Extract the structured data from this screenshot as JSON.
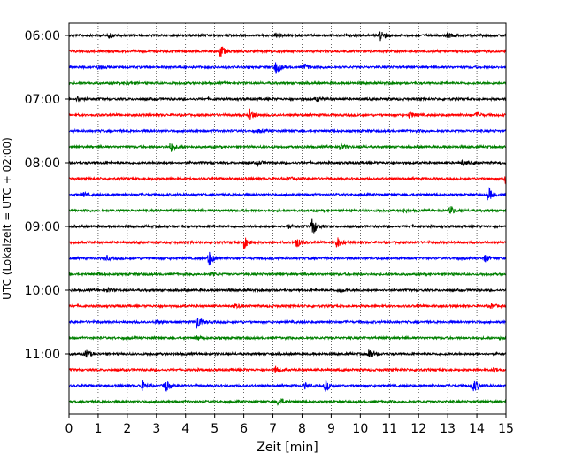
{
  "chart_data": {
    "type": "line",
    "title": "",
    "xlabel": "Zeit  [min]",
    "ylabel": "UTC (Lokalzeit = UTC + 02:00)",
    "xlim": [
      0,
      15
    ],
    "xticks": [
      "0",
      "1",
      "2",
      "3",
      "4",
      "5",
      "6",
      "7",
      "8",
      "9",
      "10",
      "11",
      "12",
      "13",
      "14",
      "15"
    ],
    "grid": "vertical-dotted",
    "trace_colors": [
      "#000000",
      "#ff0000",
      "#0000ff",
      "#008000"
    ],
    "hour_labels": [
      "06:00",
      "07:00",
      "08:00",
      "09:00",
      "10:00",
      "11:00"
    ],
    "trace_minutes_per_line": 15,
    "start_time": "06:00",
    "events": [
      {
        "trace": 0,
        "t": 1.4,
        "a": 0.3
      },
      {
        "trace": 0,
        "t": 7.1,
        "a": 0.3
      },
      {
        "trace": 0,
        "t": 10.7,
        "a": 1.0
      },
      {
        "trace": 0,
        "t": 13.0,
        "a": 0.35
      },
      {
        "trace": 1,
        "t": 5.2,
        "a": 1.0
      },
      {
        "trace": 2,
        "t": 1.0,
        "a": 0.3
      },
      {
        "trace": 2,
        "t": 7.1,
        "a": 0.9
      },
      {
        "trace": 2,
        "t": 8.1,
        "a": 0.4
      },
      {
        "trace": 3,
        "t": 2.0,
        "a": 0.2
      },
      {
        "trace": 4,
        "t": 0.3,
        "a": 0.3
      },
      {
        "trace": 4,
        "t": 8.5,
        "a": 0.3
      },
      {
        "trace": 5,
        "t": 6.2,
        "a": 0.8
      },
      {
        "trace": 5,
        "t": 11.7,
        "a": 0.45
      },
      {
        "trace": 5,
        "t": 14.0,
        "a": 0.35
      },
      {
        "trace": 6,
        "t": 6.5,
        "a": 0.2
      },
      {
        "trace": 7,
        "t": 3.5,
        "a": 0.7
      },
      {
        "trace": 7,
        "t": 9.3,
        "a": 0.6
      },
      {
        "trace": 8,
        "t": 6.5,
        "a": 0.3
      },
      {
        "trace": 8,
        "t": 13.5,
        "a": 0.3
      },
      {
        "trace": 9,
        "t": 7.5,
        "a": 0.25
      },
      {
        "trace": 9,
        "t": 15.0,
        "a": 0.8
      },
      {
        "trace": 10,
        "t": 14.4,
        "a": 1.0
      },
      {
        "trace": 10,
        "t": 0.5,
        "a": 0.3
      },
      {
        "trace": 11,
        "t": 13.1,
        "a": 0.6
      },
      {
        "trace": 11,
        "t": 11.5,
        "a": 0.25
      },
      {
        "trace": 12,
        "t": 8.35,
        "a": 1.4
      },
      {
        "trace": 12,
        "t": 7.5,
        "a": 0.3
      },
      {
        "trace": 13,
        "t": 6.0,
        "a": 0.9
      },
      {
        "trace": 13,
        "t": 7.8,
        "a": 0.8
      },
      {
        "trace": 13,
        "t": 9.2,
        "a": 0.8
      },
      {
        "trace": 14,
        "t": 4.8,
        "a": 1.1
      },
      {
        "trace": 14,
        "t": 1.3,
        "a": 0.3
      },
      {
        "trace": 14,
        "t": 14.3,
        "a": 0.6
      },
      {
        "trace": 15,
        "t": 1.0,
        "a": 0.2
      },
      {
        "trace": 15,
        "t": 4.9,
        "a": 0.2
      },
      {
        "trace": 16,
        "t": 1.3,
        "a": 0.3
      },
      {
        "trace": 16,
        "t": 9.3,
        "a": 0.3
      },
      {
        "trace": 17,
        "t": 5.7,
        "a": 0.25
      },
      {
        "trace": 17,
        "t": 14.5,
        "a": 0.3
      },
      {
        "trace": 18,
        "t": 3.0,
        "a": 0.3
      },
      {
        "trace": 18,
        "t": 4.4,
        "a": 1.1
      },
      {
        "trace": 19,
        "t": 4.4,
        "a": 0.3
      },
      {
        "trace": 19,
        "t": 14.8,
        "a": 0.3
      },
      {
        "trace": 20,
        "t": 0.6,
        "a": 0.6
      },
      {
        "trace": 20,
        "t": 10.3,
        "a": 0.8
      },
      {
        "trace": 21,
        "t": 7.1,
        "a": 0.5
      },
      {
        "trace": 21,
        "t": 14.6,
        "a": 0.3
      },
      {
        "trace": 22,
        "t": 2.5,
        "a": 0.7
      },
      {
        "trace": 22,
        "t": 3.3,
        "a": 0.9
      },
      {
        "trace": 22,
        "t": 8.8,
        "a": 0.8
      },
      {
        "trace": 22,
        "t": 13.9,
        "a": 0.9
      },
      {
        "trace": 22,
        "t": 8.1,
        "a": 0.4
      },
      {
        "trace": 23,
        "t": 7.2,
        "a": 0.7
      }
    ]
  }
}
